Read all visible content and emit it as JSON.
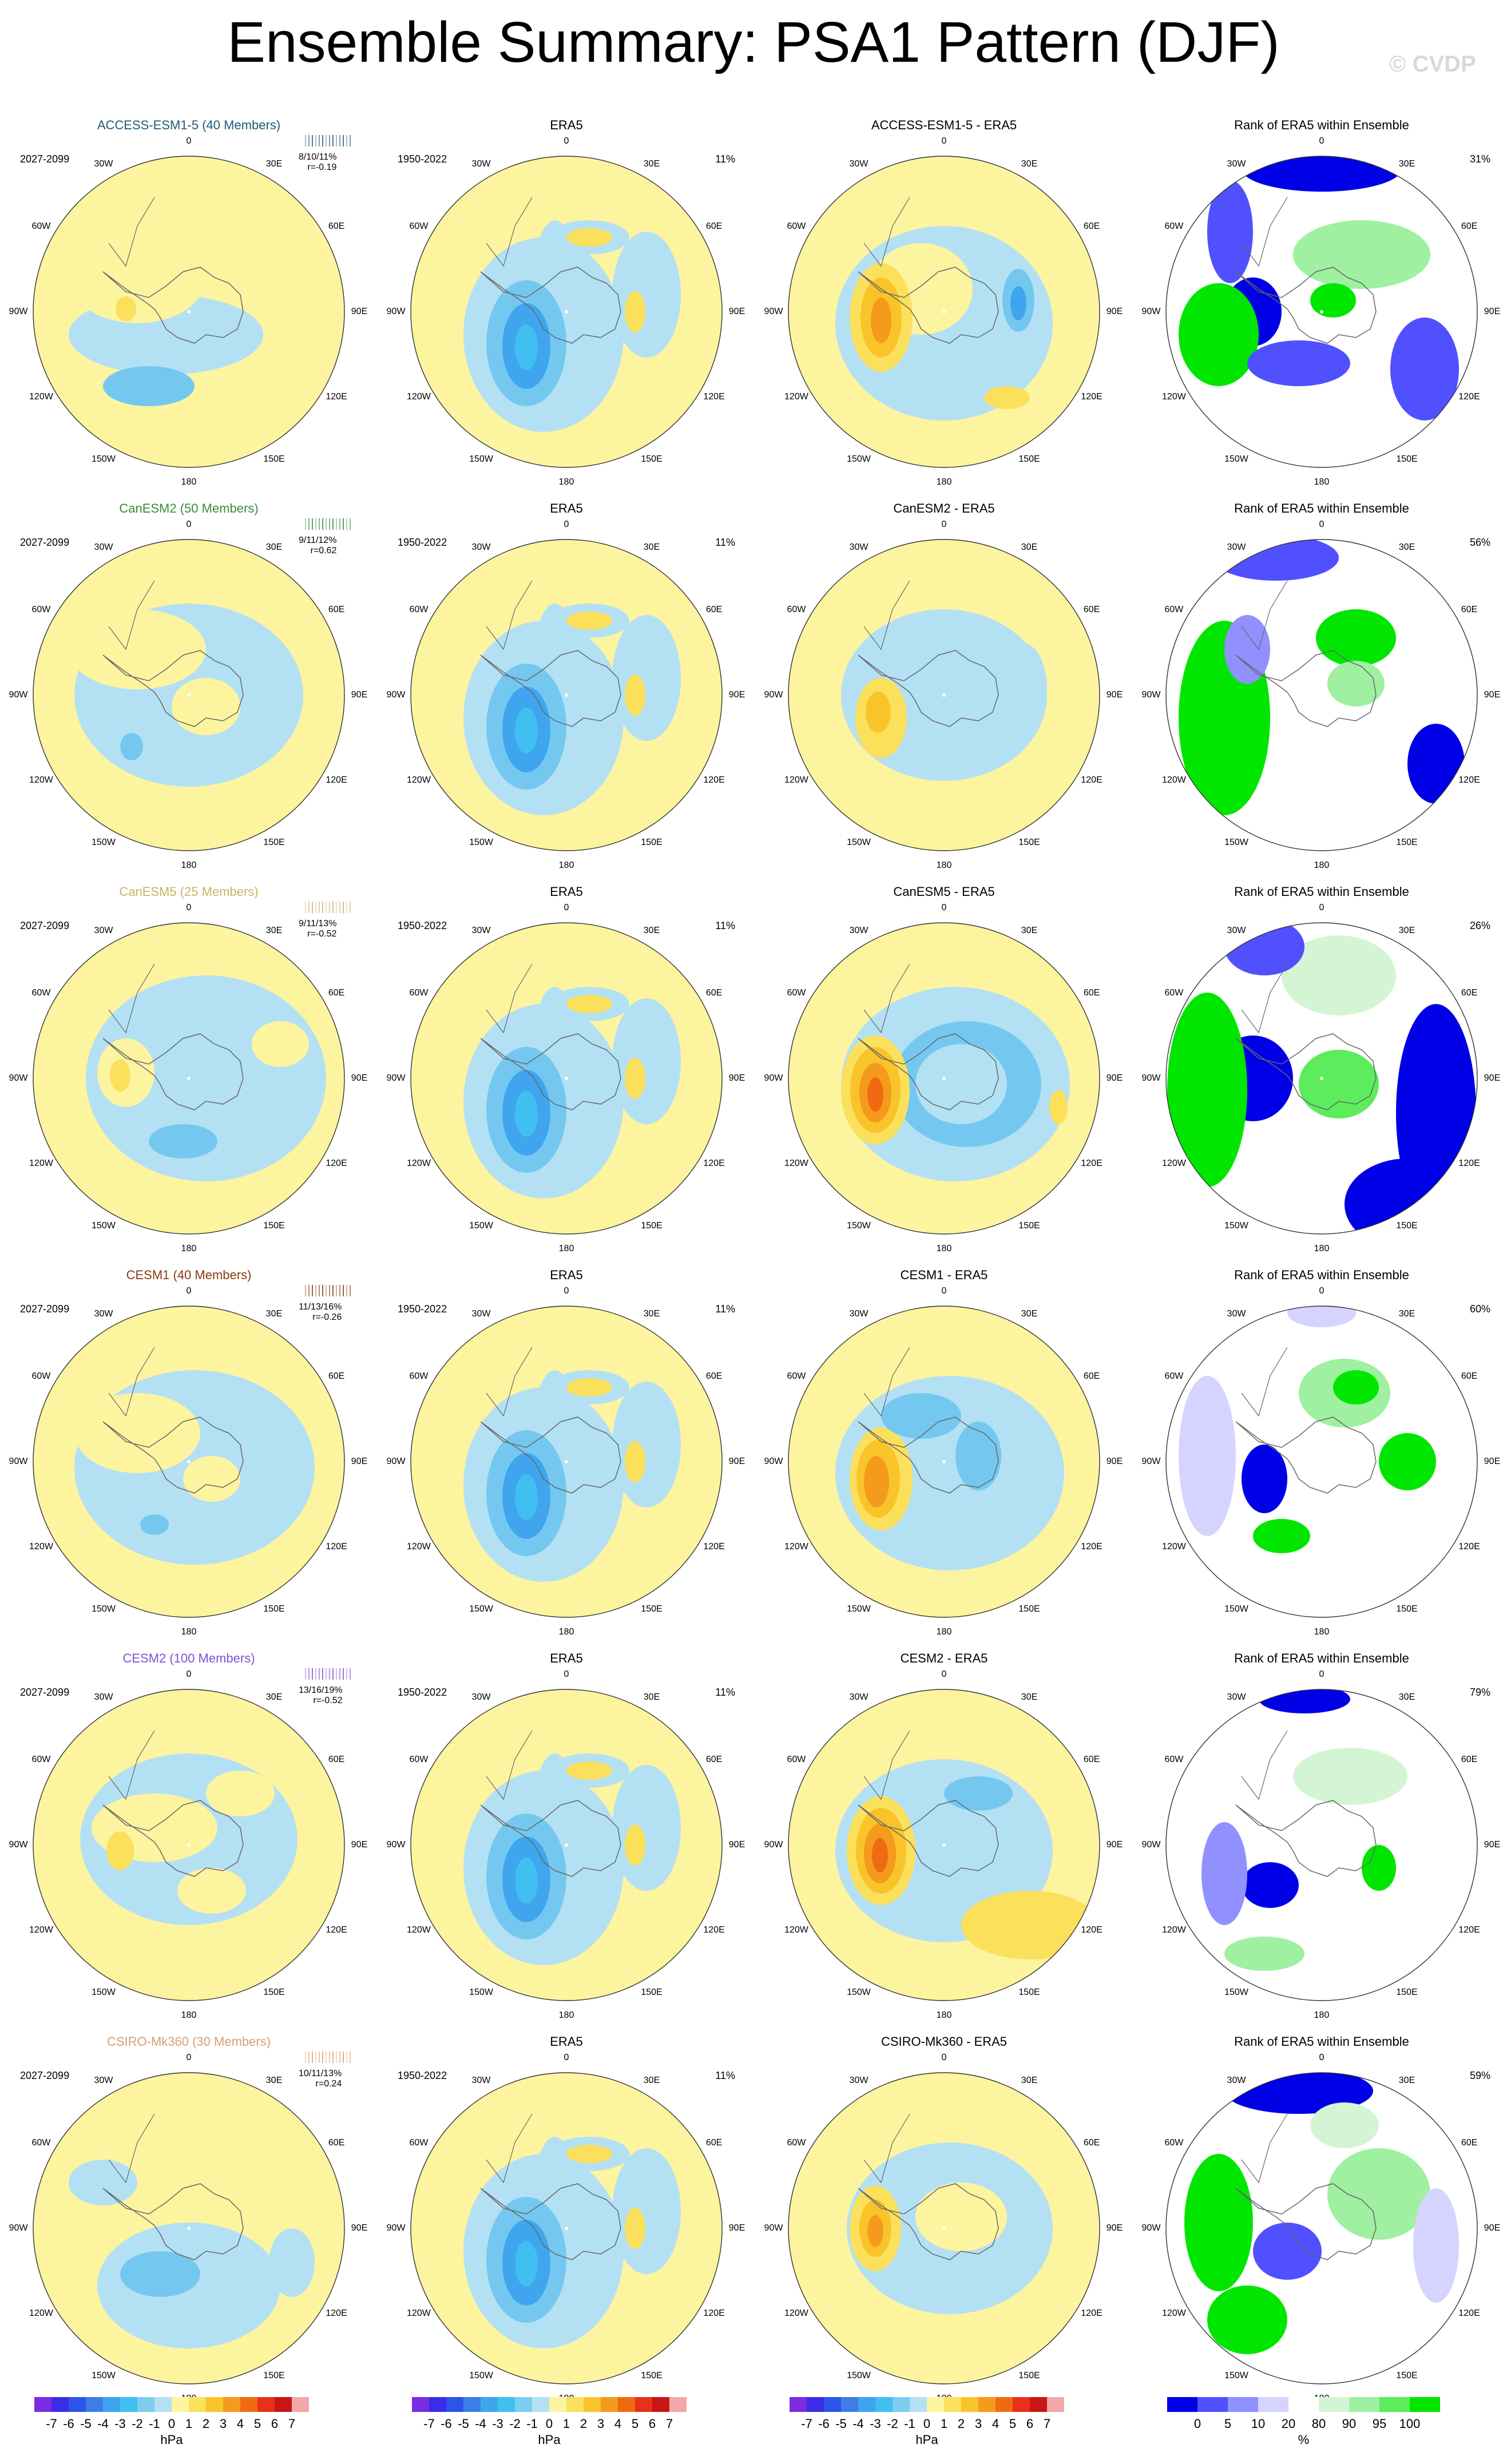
{
  "title": "Ensemble Summary: PSA1 Pattern (DJF)",
  "copyright": "© CVDP",
  "longitude_labels": [
    "0",
    "30E",
    "60E",
    "90E",
    "120E",
    "150E",
    "180",
    "150W",
    "120W",
    "90W",
    "60W",
    "30W"
  ],
  "rows": [
    {
      "model": "ACCESS-ESM1-5 (40 Members)",
      "model_color": "#1f5a7a",
      "model_period": "2027-2099",
      "obs_label": "ERA5",
      "obs_period": "1950-2022",
      "obs_pct": "11%",
      "diff_label": "ACCESS-ESM1-5 - ERA5",
      "rank_label": "Rank of ERA5 within Ensemble",
      "rank_pct": "31%",
      "stats": "8/10/11%",
      "corr": "r=-0.19"
    },
    {
      "model": "CanESM2 (50 Members)",
      "model_color": "#3a8a3a",
      "model_period": "2027-2099",
      "obs_label": "ERA5",
      "obs_period": "1950-2022",
      "obs_pct": "11%",
      "diff_label": "CanESM2 - ERA5",
      "rank_label": "Rank of ERA5 within Ensemble",
      "rank_pct": "56%",
      "stats": "9/11/12%",
      "corr": "r=0.62"
    },
    {
      "model": "CanESM5 (25 Members)",
      "model_color": "#c8b464",
      "model_period": "2027-2099",
      "obs_label": "ERA5",
      "obs_period": "1950-2022",
      "obs_pct": "11%",
      "diff_label": "CanESM5 - ERA5",
      "rank_label": "Rank of ERA5 within Ensemble",
      "rank_pct": "26%",
      "stats": "9/11/13%",
      "corr": "r=-0.52"
    },
    {
      "model": "CESM1 (40 Members)",
      "model_color": "#8b3a10",
      "model_period": "2027-2099",
      "obs_label": "ERA5",
      "obs_period": "1950-2022",
      "obs_pct": "11%",
      "diff_label": "CESM1 - ERA5",
      "rank_label": "Rank of ERA5 within Ensemble",
      "rank_pct": "60%",
      "stats": "11/13/16%",
      "corr": "r=-0.26"
    },
    {
      "model": "CESM2 (100 Members)",
      "model_color": "#7b52d6",
      "model_period": "2027-2099",
      "obs_label": "ERA5",
      "obs_period": "1950-2022",
      "obs_pct": "11%",
      "diff_label": "CESM2 - ERA5",
      "rank_label": "Rank of ERA5 within Ensemble",
      "rank_pct": "79%",
      "stats": "13/16/19%",
      "corr": "r=-0.52"
    },
    {
      "model": "CSIRO-Mk360 (30 Members)",
      "model_color": "#d4a070",
      "model_period": "2027-2099",
      "obs_label": "ERA5",
      "obs_period": "1950-2022",
      "obs_pct": "11%",
      "diff_label": "CSIRO-Mk360 - ERA5",
      "rank_label": "Rank of ERA5 within Ensemble",
      "rank_pct": "59%",
      "stats": "10/11/13%",
      "corr": "r=0.24"
    }
  ],
  "colorbar_hpa": {
    "ticks": [
      "-7",
      "-6",
      "-5",
      "-4",
      "-3",
      "-2",
      "-1",
      "0",
      "1",
      "2",
      "3",
      "4",
      "5",
      "6",
      "7"
    ],
    "unit": "hPa",
    "colors": [
      "#7b2be0",
      "#3a2ce8",
      "#2a55e6",
      "#3d7ee8",
      "#3fa5ee",
      "#40c0f0",
      "#7ccdf0",
      "#b4e0f4",
      "#fdf4a0",
      "#fbe05c",
      "#f9c42a",
      "#f49a1c",
      "#f06a12",
      "#e8301a",
      "#c81616",
      "#f2a8a8"
    ]
  },
  "colorbar_rank": {
    "ticks": [
      "0",
      "5",
      "10",
      "20",
      "80",
      "90",
      "95",
      "100"
    ],
    "unit": "%",
    "colors": [
      "#0000e6",
      "#5050ff",
      "#9090ff",
      "#d4d4ff",
      "#ffffff",
      "#d4f5d4",
      "#9ff0a0",
      "#5cec5c",
      "#00e600"
    ]
  }
}
